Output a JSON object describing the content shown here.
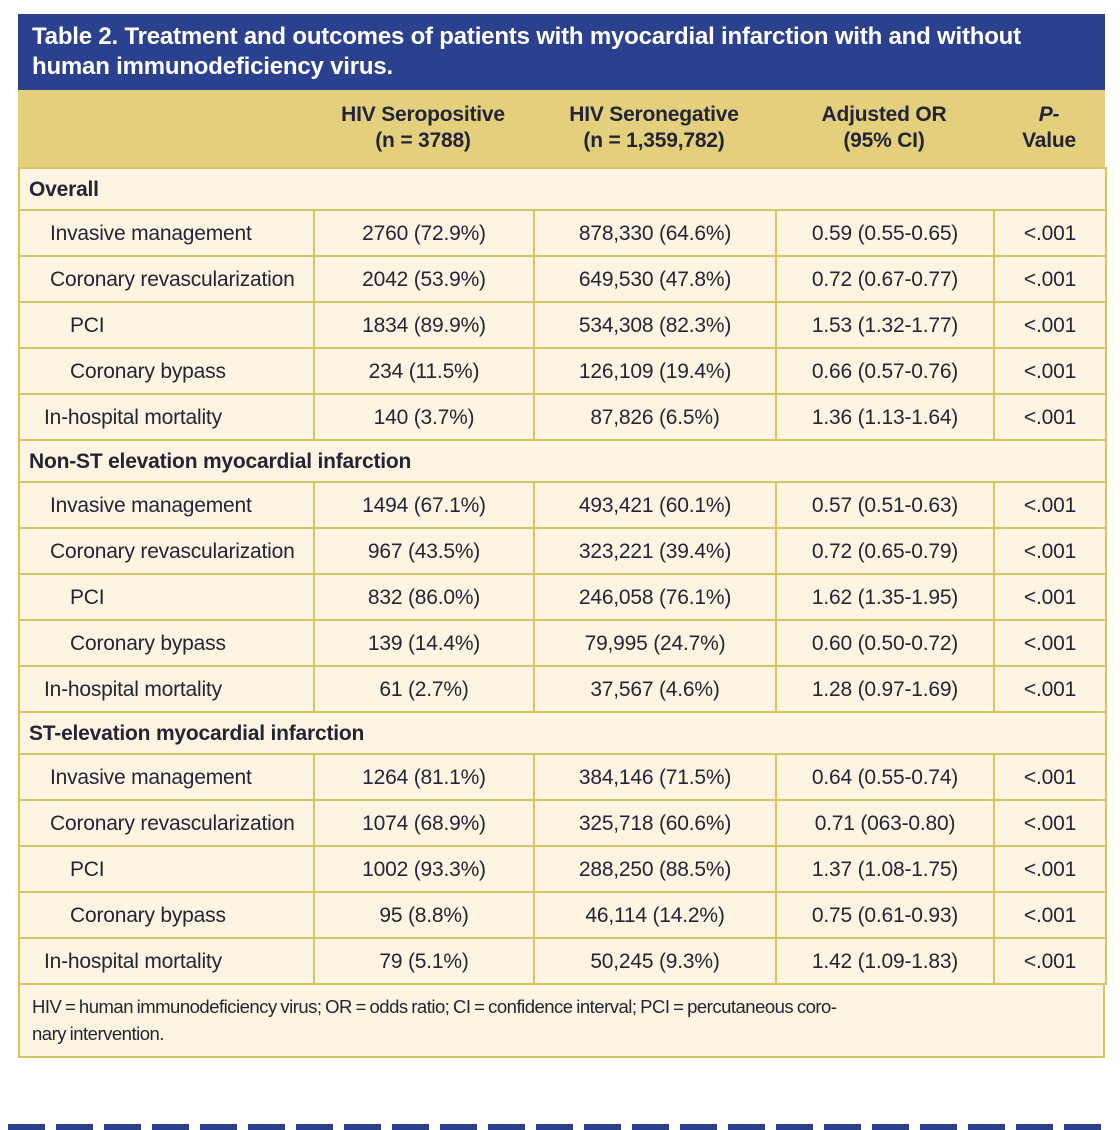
{
  "colors": {
    "header_blue": "#2b4190",
    "gold_header": "#e4cf7d",
    "gold_border": "#d9c464",
    "cream_body": "#fdf5e2",
    "text_ink": "#232536",
    "title_text": "#ffffff"
  },
  "title": {
    "line1": "Table 2. Treatment and outcomes of patients with myocardial infarction with and without",
    "line2": "human immunodeficiency virus."
  },
  "table": {
    "header_cells": [
      {
        "lines": []
      },
      {
        "lines": [
          "HIV Seropositive",
          "(n = 3788)"
        ]
      },
      {
        "lines": [
          "HIV Seronegative",
          "(n = 1,359,782)"
        ]
      },
      {
        "lines": [
          "Adjusted OR",
          "(95% CI)"
        ]
      },
      {
        "lines": [
          "P-",
          "Value"
        ],
        "italic_line1": true
      }
    ],
    "sections": [
      {
        "title": "Overall",
        "rows": [
          {
            "label": "Invasive management",
            "indent": 1,
            "values": [
              "2760 (72.9%)",
              "878,330 (64.6%)",
              "0.59 (0.55-0.65)",
              "<.001"
            ]
          },
          {
            "label": "Coronary revascularization",
            "indent": 1,
            "values": [
              "2042 (53.9%)",
              "649,530 (47.8%)",
              "0.72 (0.67-0.77)",
              "<.001"
            ]
          },
          {
            "label": "PCI",
            "indent": 2,
            "values": [
              "1834 (89.9%)",
              "534,308 (82.3%)",
              "1.53 (1.32-1.77)",
              "<.001"
            ]
          },
          {
            "label": "Coronary bypass",
            "indent": 2,
            "values": [
              "234 (11.5%)",
              "126,109 (19.4%)",
              "0.66 (0.57-0.76)",
              "<.001"
            ]
          },
          {
            "label": "In-hospital mortality",
            "indent": 0,
            "values": [
              "140 (3.7%)",
              "87,826 (6.5%)",
              "1.36 (1.13-1.64)",
              "<.001"
            ]
          }
        ]
      },
      {
        "title": "Non-ST elevation myocardial infarction",
        "rows": [
          {
            "label": "Invasive management",
            "indent": 1,
            "values": [
              "1494 (67.1%)",
              "493,421 (60.1%)",
              "0.57 (0.51-0.63)",
              "<.001"
            ]
          },
          {
            "label": "Coronary revascularization",
            "indent": 1,
            "values": [
              "967 (43.5%)",
              "323,221 (39.4%)",
              "0.72 (0.65-0.79)",
              "<.001"
            ]
          },
          {
            "label": "PCI",
            "indent": 2,
            "values": [
              "832 (86.0%)",
              "246,058 (76.1%)",
              "1.62 (1.35-1.95)",
              "<.001"
            ]
          },
          {
            "label": "Coronary bypass",
            "indent": 2,
            "values": [
              "139 (14.4%)",
              "79,995 (24.7%)",
              "0.60 (0.50-0.72)",
              "<.001"
            ]
          },
          {
            "label": "In-hospital mortality",
            "indent": 0,
            "values": [
              "61 (2.7%)",
              "37,567 (4.6%)",
              "1.28 (0.97-1.69)",
              "<.001"
            ]
          }
        ]
      },
      {
        "title": "ST-elevation myocardial infarction",
        "rows": [
          {
            "label": "Invasive management",
            "indent": 1,
            "values": [
              "1264 (81.1%)",
              "384,146 (71.5%)",
              "0.64 (0.55-0.74)",
              "<.001"
            ]
          },
          {
            "label": "Coronary revascularization",
            "indent": 1,
            "values": [
              "1074 (68.9%)",
              "325,718 (60.6%)",
              "0.71 (063-0.80)",
              "<.001"
            ]
          },
          {
            "label": "PCI",
            "indent": 2,
            "values": [
              "1002 (93.3%)",
              "288,250 (88.5%)",
              "1.37 (1.08-1.75)",
              "<.001"
            ]
          },
          {
            "label": "Coronary bypass",
            "indent": 2,
            "values": [
              "95 (8.8%)",
              "46,114 (14.2%)",
              "0.75 (0.61-0.93)",
              "<.001"
            ]
          },
          {
            "label": "In-hospital mortality",
            "indent": 0,
            "values": [
              "79 (5.1%)",
              "50,245 (9.3%)",
              "1.42 (1.09-1.83)",
              "<.001"
            ]
          }
        ]
      }
    ]
  },
  "footnote": {
    "line1": "HIV = human immunodeficiency virus; OR = odds ratio; CI = confidence interval; PCI = percutaneous coro-",
    "line2": "nary intervention."
  }
}
